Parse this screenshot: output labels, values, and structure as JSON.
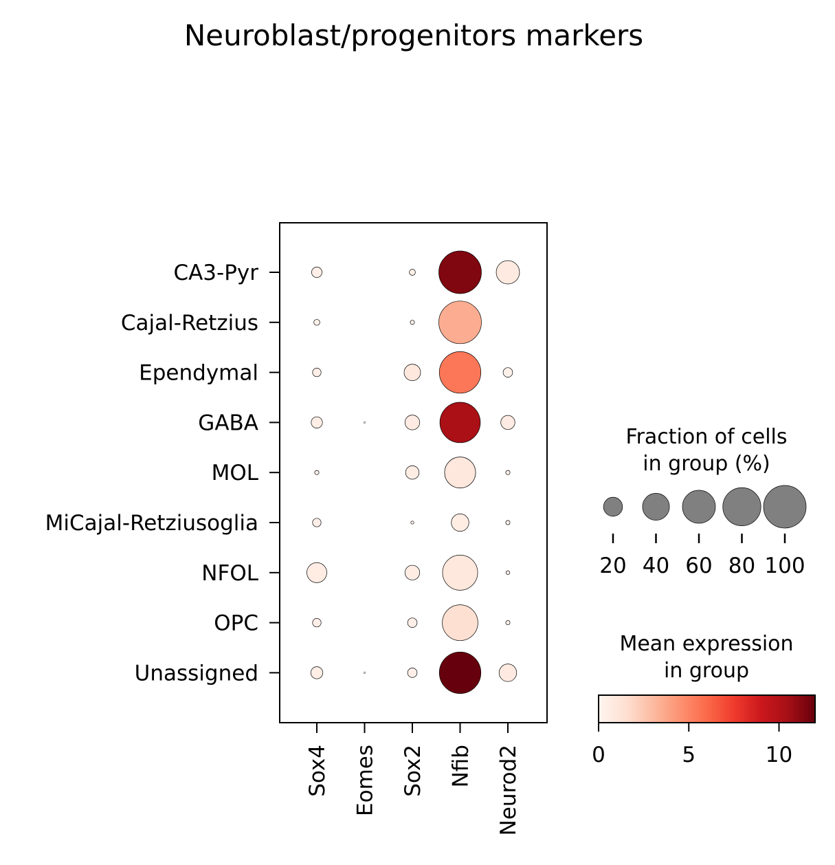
{
  "chart_data": {
    "type": "dotplot",
    "title": "Neuroblast/progenitors markers",
    "genes": [
      "Sox4",
      "Eomes",
      "Sox2",
      "Nfib",
      "Neurod2"
    ],
    "groups": [
      "CA3-Pyr",
      "Cajal-Retzius",
      "Ependymal",
      "GABA",
      "MOL",
      "MiCajal-Retziusoglia",
      "NFOL",
      "OPC",
      "Unassigned"
    ],
    "fraction_pct": [
      [
        6,
        0,
        2,
        100,
        30
      ],
      [
        2,
        0,
        1,
        100,
        0
      ],
      [
        4,
        0,
        15,
        95,
        5
      ],
      [
        7,
        0.2,
        12,
        90,
        11
      ],
      [
        1,
        0,
        10,
        53,
        1
      ],
      [
        4,
        0,
        0.5,
        17,
        1
      ],
      [
        22,
        0,
        12,
        68,
        0.8
      ],
      [
        4,
        0,
        5,
        70,
        1
      ],
      [
        8,
        0.2,
        5,
        95,
        17
      ]
    ],
    "mean_expression": [
      [
        0.4,
        0,
        0.3,
        11.4,
        0.8
      ],
      [
        0.3,
        0,
        0.3,
        3.5,
        0
      ],
      [
        0.4,
        0,
        0.9,
        5.5,
        0.3
      ],
      [
        0.5,
        0,
        0.7,
        10.3,
        0.7
      ],
      [
        0.3,
        0,
        0.6,
        1.0,
        0.2
      ],
      [
        0.4,
        0,
        0.3,
        0.6,
        0.2
      ],
      [
        0.6,
        0,
        0.6,
        1.0,
        0.2
      ],
      [
        0.4,
        0,
        0.4,
        1.5,
        0.2
      ],
      [
        0.5,
        0,
        0.4,
        12.0,
        0.8
      ]
    ],
    "size_legend": {
      "title_lines": [
        "Fraction of cells",
        "in group (%)"
      ],
      "values": [
        20,
        40,
        60,
        80,
        100
      ],
      "labels": [
        "20",
        "40",
        "60",
        "80",
        "100"
      ],
      "dot_color": "#808080"
    },
    "color_legend": {
      "title_lines": [
        "Mean expression",
        "in group"
      ],
      "range": [
        0,
        12
      ],
      "ticks": [
        0,
        5,
        10
      ],
      "tick_labels": [
        "0",
        "5",
        "10"
      ],
      "colormap": "Reds",
      "stops": [
        "#fff5f0",
        "#fee0d2",
        "#fcbba1",
        "#fc9272",
        "#fb6a4a",
        "#ef3b2c",
        "#cb181d",
        "#a50f15",
        "#67000d"
      ]
    }
  }
}
